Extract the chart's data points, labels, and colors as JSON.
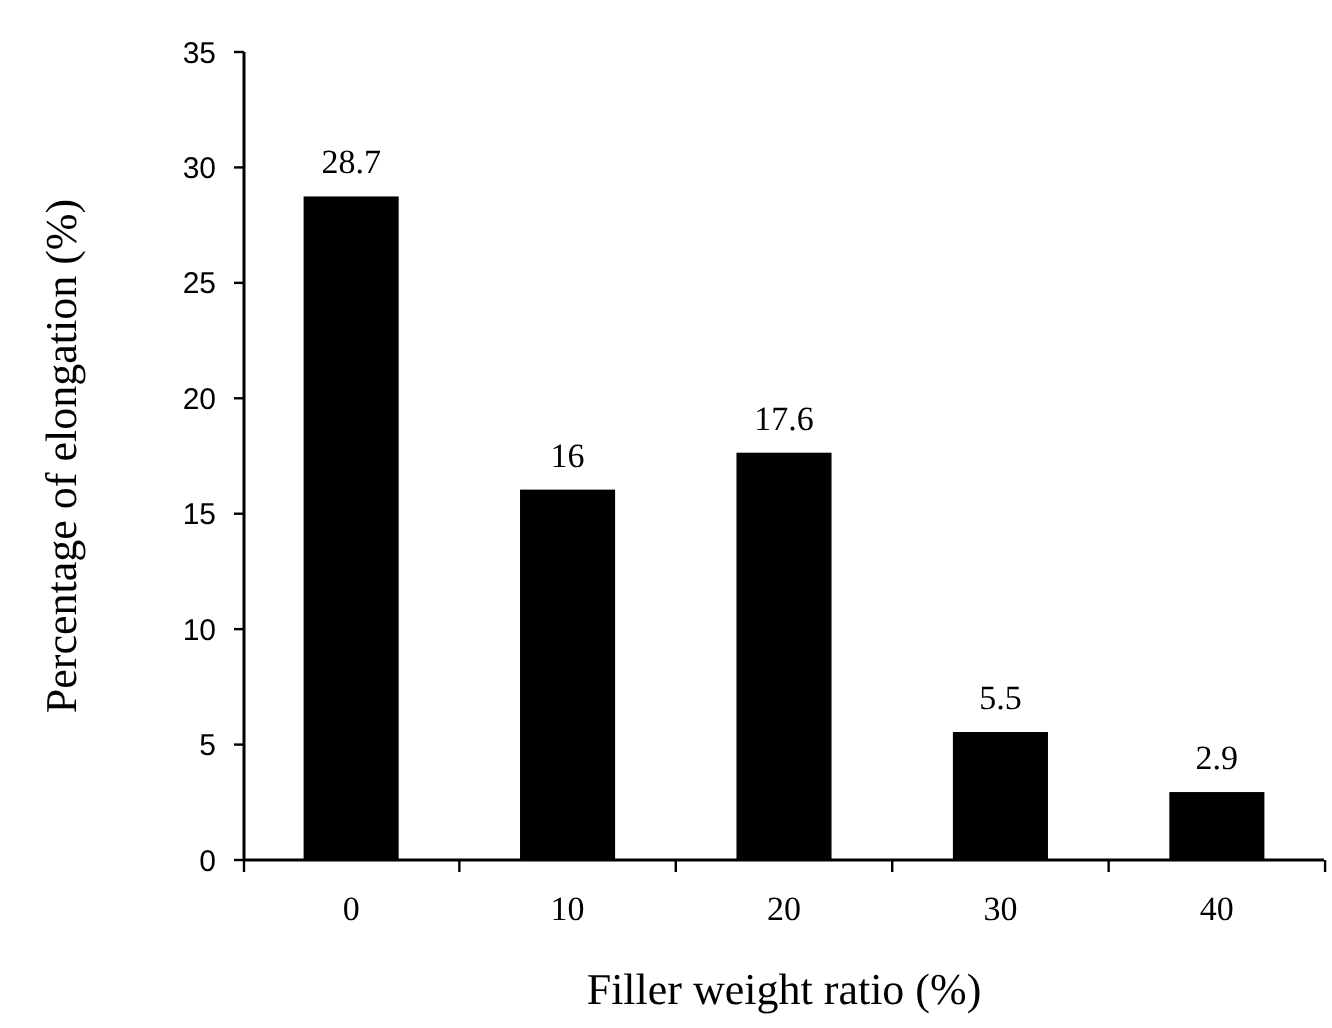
{
  "chart_data": {
    "type": "bar",
    "xlabel": "Filler weight ratio (%)",
    "ylabel": "Percentage of elongation (%)",
    "categories": [
      "0",
      "10",
      "20",
      "30",
      "40"
    ],
    "values": [
      28.7,
      16,
      17.6,
      5.5,
      2.9
    ],
    "color": "#000000",
    "ylim": [
      0,
      35
    ],
    "yticks": [
      0,
      5,
      10,
      15,
      20,
      25,
      30,
      35
    ],
    "data_labels": true
  }
}
